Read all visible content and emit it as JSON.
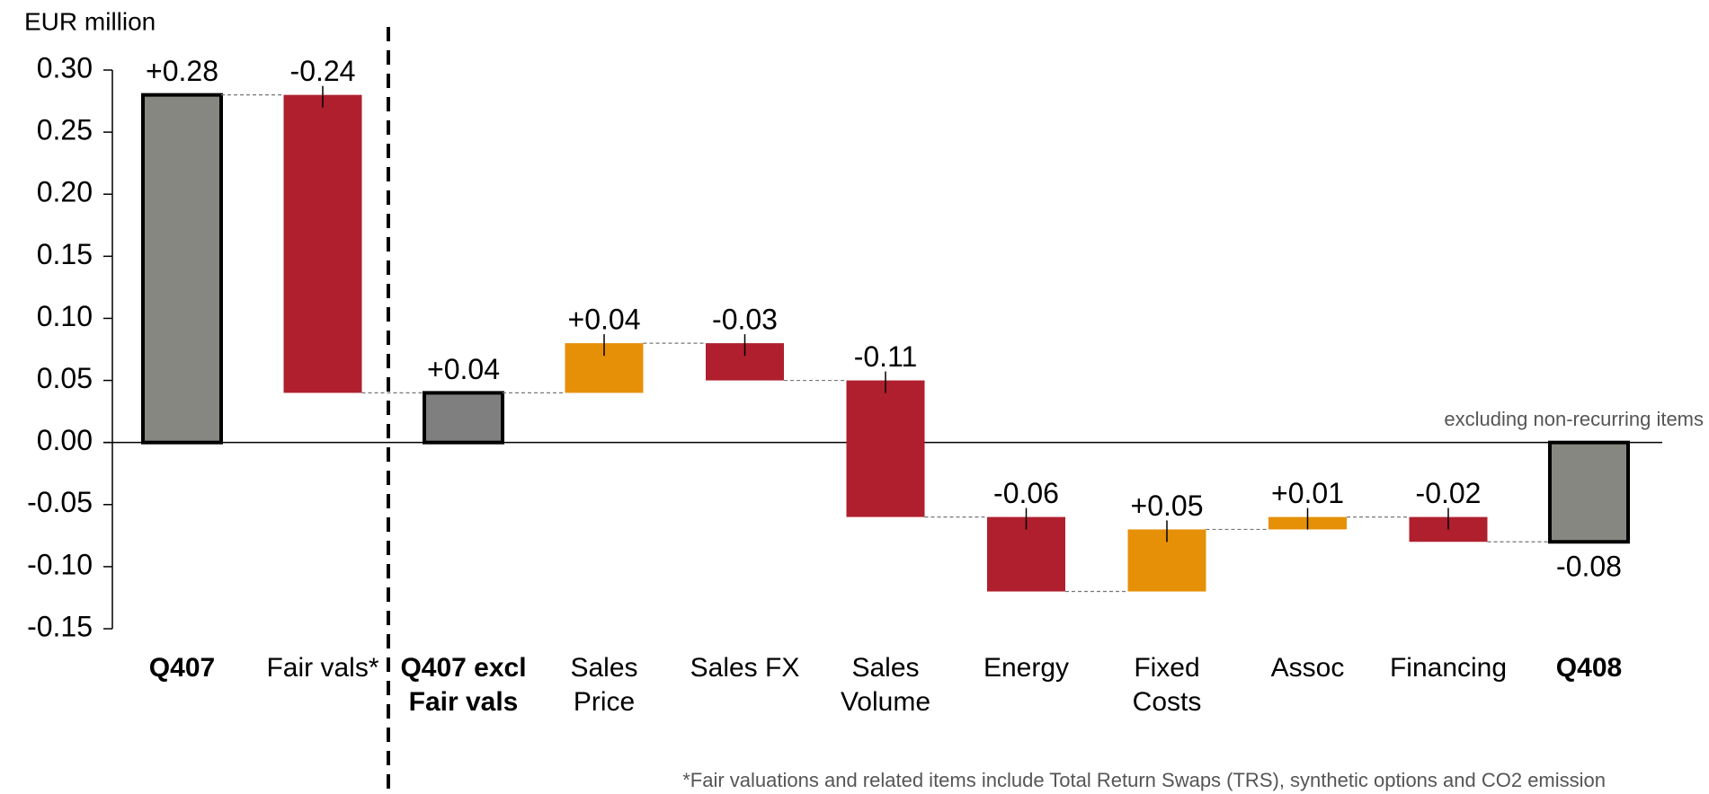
{
  "chart_data": {
    "type": "waterfall",
    "y_label": "EUR million",
    "annotation": "excluding non-recurring items",
    "footnote": "*Fair valuations and related items include Total Return Swaps (TRS), synthetic options and CO2 emission",
    "categories": [
      "Q407",
      "Fair vals*",
      "Q407 excl\nFair vals",
      "Sales\nPrice",
      "Sales FX",
      "Sales\nVolume",
      "Energy",
      "Fixed\nCosts",
      "Assoc",
      "Financing",
      "Q408"
    ],
    "values": [
      0.28,
      -0.24,
      0.04,
      0.04,
      -0.03,
      -0.11,
      -0.06,
      0.05,
      0.01,
      -0.02,
      -0.08
    ],
    "value_labels": [
      "+0.28",
      "-0.24",
      "+0.04",
      "+0.04",
      "-0.03",
      "-0.11",
      "-0.06",
      "+0.05",
      "+0.01",
      "-0.02",
      "-0.08"
    ],
    "is_total": [
      true,
      false,
      true,
      false,
      false,
      false,
      false,
      false,
      false,
      false,
      true
    ],
    "colors": [
      "#878782",
      "#b01f2e",
      "#7f7f7f",
      "#e69007",
      "#b01f2e",
      "#b01f2e",
      "#b01f2e",
      "#e69007",
      "#e69007",
      "#b01f2e",
      "#878782"
    ],
    "ylim": [
      -0.15,
      0.3
    ],
    "yticks": [
      {
        "value": 0.3,
        "label": "0.30"
      },
      0.25,
      {
        "value": 0.2,
        "label": "0.20"
      },
      0.15,
      {
        "value": 0.1,
        "label": "0.10"
      },
      0.05,
      {
        "value": 0,
        "label": "0.00"
      },
      -0.05,
      {
        "value": -0.1,
        "label": "-0.10"
      },
      -0.15
    ]
  }
}
